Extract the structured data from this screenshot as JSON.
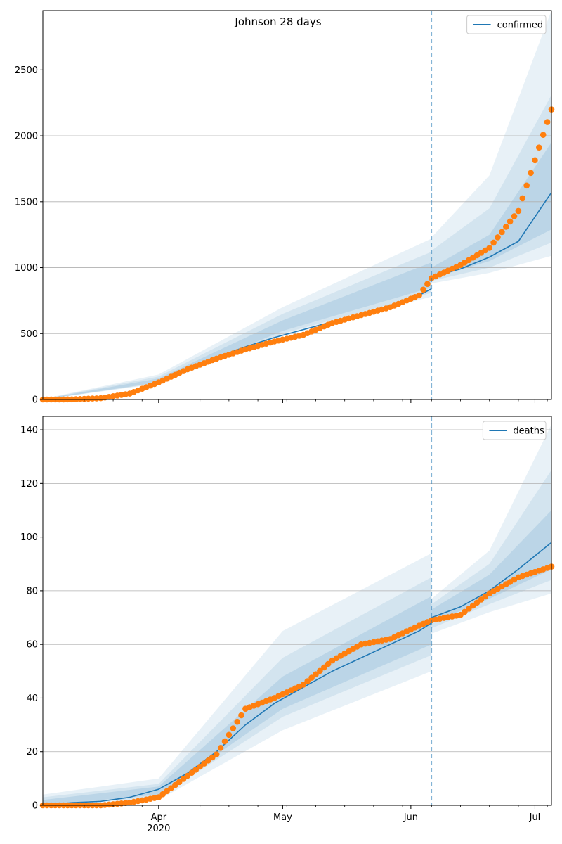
{
  "chart_data": [
    {
      "type": "line",
      "title": "Johnson 28 days",
      "xlabel": "",
      "ylabel": "",
      "x_range": [
        "2020-03-04",
        "2020-07-05"
      ],
      "ylim": [
        0,
        2950
      ],
      "yticks": [
        0,
        500,
        1000,
        1500,
        2000,
        2500
      ],
      "xticks": [
        {
          "date": "2020-04-01",
          "label": "Apr",
          "sublabel": "2020"
        },
        {
          "date": "2020-05-01",
          "label": "May",
          "sublabel": ""
        },
        {
          "date": "2020-06-01",
          "label": "Jun",
          "sublabel": ""
        },
        {
          "date": "2020-07-01",
          "label": "Jul",
          "sublabel": ""
        }
      ],
      "grid": "y",
      "legend_position": "top-right",
      "forecast_start": "2020-06-06",
      "colors": {
        "model": "#1f77b4",
        "observed": "#ff7f0e",
        "band": "#1f77b4"
      },
      "series": [
        {
          "name": "confirmed",
          "kind": "model-line",
          "points": [
            [
              "2020-03-04",
              0
            ],
            [
              "2020-03-11",
              2
            ],
            [
              "2020-03-18",
              12
            ],
            [
              "2020-03-25",
              50
            ],
            [
              "2020-04-01",
              140
            ],
            [
              "2020-04-08",
              230
            ],
            [
              "2020-04-15",
              320
            ],
            [
              "2020-04-22",
              400
            ],
            [
              "2020-04-29",
              470
            ],
            [
              "2020-05-06",
              530
            ],
            [
              "2020-05-13",
              590
            ],
            [
              "2020-05-20",
              650
            ],
            [
              "2020-05-27",
              715
            ],
            [
              "2020-06-03",
              790
            ],
            [
              "2020-06-06",
              840
            ],
            [
              "2020-06-06",
              930
            ],
            [
              "2020-06-13",
              990
            ],
            [
              "2020-06-20",
              1080
            ],
            [
              "2020-06-27",
              1200
            ],
            [
              "2020-07-05",
              1570
            ]
          ]
        },
        {
          "kind": "observed-points",
          "points": [
            [
              "2020-03-04",
              0
            ],
            [
              "2020-03-11",
              1
            ],
            [
              "2020-03-18",
              10
            ],
            [
              "2020-03-25",
              45
            ],
            [
              "2020-04-01",
              130
            ],
            [
              "2020-04-08",
              230
            ],
            [
              "2020-04-15",
              310
            ],
            [
              "2020-04-22",
              380
            ],
            [
              "2020-04-29",
              440
            ],
            [
              "2020-05-06",
              490
            ],
            [
              "2020-05-13",
              580
            ],
            [
              "2020-05-20",
              640
            ],
            [
              "2020-05-27",
              700
            ],
            [
              "2020-06-03",
              790
            ],
            [
              "2020-06-06",
              920
            ],
            [
              "2020-06-13",
              1020
            ],
            [
              "2020-06-20",
              1150
            ],
            [
              "2020-06-27",
              1430
            ],
            [
              "2020-07-05",
              2200
            ]
          ]
        },
        {
          "kind": "uncertainty-bands",
          "bands": [
            {
              "level": 1,
              "lower": [
                [
                  "2020-03-04",
                  0
                ],
                [
                  "2020-04-01",
                  120
                ],
                [
                  "2020-05-01",
                  480
                ],
                [
                  "2020-06-06",
                  780
                ],
                [
                  "2020-06-06",
                  880
                ],
                [
                  "2020-06-20",
                  960
                ],
                [
                  "2020-07-05",
                  1090
                ]
              ],
              "upper": [
                [
                  "2020-03-04",
                  5
                ],
                [
                  "2020-04-01",
                  190
                ],
                [
                  "2020-05-01",
                  700
                ],
                [
                  "2020-06-06",
                  1220
                ],
                [
                  "2020-06-06",
                  1230
                ],
                [
                  "2020-06-20",
                  1700
                ],
                [
                  "2020-07-05",
                  2950
                ]
              ]
            },
            {
              "level": 2,
              "lower": [
                [
                  "2020-03-04",
                  0
                ],
                [
                  "2020-04-01",
                  125
                ],
                [
                  "2020-05-01",
                  500
                ],
                [
                  "2020-06-06",
                  810
                ],
                [
                  "2020-06-06",
                  900
                ],
                [
                  "2020-06-20",
                  1000
                ],
                [
                  "2020-07-05",
                  1190
                ]
              ],
              "upper": [
                [
                  "2020-03-04",
                  3
                ],
                [
                  "2020-04-01",
                  175
                ],
                [
                  "2020-05-01",
                  650
                ],
                [
                  "2020-06-06",
                  1120
                ],
                [
                  "2020-06-06",
                  1130
                ],
                [
                  "2020-06-20",
                  1450
                ],
                [
                  "2020-07-05",
                  2310
                ]
              ]
            },
            {
              "level": 3,
              "lower": [
                [
                  "2020-03-04",
                  0
                ],
                [
                  "2020-04-01",
                  130
                ],
                [
                  "2020-05-01",
                  520
                ],
                [
                  "2020-06-06",
                  850
                ],
                [
                  "2020-06-06",
                  920
                ],
                [
                  "2020-06-20",
                  1050
                ],
                [
                  "2020-07-05",
                  1290
                ]
              ],
              "upper": [
                [
                  "2020-03-04",
                  2
                ],
                [
                  "2020-04-01",
                  160
                ],
                [
                  "2020-05-01",
                  600
                ],
                [
                  "2020-06-06",
                  1040
                ],
                [
                  "2020-06-06",
                  1000
                ],
                [
                  "2020-06-20",
                  1250
                ],
                [
                  "2020-07-05",
                  1950
                ]
              ]
            }
          ]
        }
      ]
    },
    {
      "type": "line",
      "title": "",
      "xlabel": "",
      "ylabel": "",
      "x_range": [
        "2020-03-04",
        "2020-07-05"
      ],
      "ylim": [
        0,
        145
      ],
      "yticks": [
        0,
        20,
        40,
        60,
        80,
        100,
        120,
        140
      ],
      "xticks": [
        {
          "date": "2020-04-01",
          "label": "Apr",
          "sublabel": "2020"
        },
        {
          "date": "2020-05-01",
          "label": "May",
          "sublabel": ""
        },
        {
          "date": "2020-06-01",
          "label": "Jun",
          "sublabel": ""
        },
        {
          "date": "2020-07-01",
          "label": "Jul",
          "sublabel": ""
        }
      ],
      "grid": "y",
      "legend_position": "top-right",
      "forecast_start": "2020-06-06",
      "colors": {
        "model": "#1f77b4",
        "observed": "#ff7f0e",
        "band": "#1f77b4"
      },
      "series": [
        {
          "name": "deaths",
          "kind": "model-line",
          "points": [
            [
              "2020-03-04",
              0
            ],
            [
              "2020-03-11",
              1
            ],
            [
              "2020-03-18",
              1.5
            ],
            [
              "2020-03-25",
              3
            ],
            [
              "2020-04-01",
              6
            ],
            [
              "2020-04-08",
              12
            ],
            [
              "2020-04-15",
              20
            ],
            [
              "2020-04-22",
              30
            ],
            [
              "2020-04-29",
              38
            ],
            [
              "2020-05-06",
              44
            ],
            [
              "2020-05-13",
              50
            ],
            [
              "2020-05-20",
              55
            ],
            [
              "2020-05-27",
              60
            ],
            [
              "2020-06-03",
              65
            ],
            [
              "2020-06-06",
              68
            ],
            [
              "2020-06-06",
              70
            ],
            [
              "2020-06-13",
              74
            ],
            [
              "2020-06-20",
              80
            ],
            [
              "2020-06-27",
              88
            ],
            [
              "2020-07-05",
              98
            ]
          ]
        },
        {
          "kind": "observed-points",
          "points": [
            [
              "2020-03-04",
              0
            ],
            [
              "2020-03-11",
              0
            ],
            [
              "2020-03-18",
              0
            ],
            [
              "2020-03-25",
              1
            ],
            [
              "2020-04-01",
              3
            ],
            [
              "2020-04-08",
              11
            ],
            [
              "2020-04-15",
              19
            ],
            [
              "2020-04-22",
              36
            ],
            [
              "2020-04-29",
              40
            ],
            [
              "2020-05-06",
              45
            ],
            [
              "2020-05-13",
              54
            ],
            [
              "2020-05-20",
              60
            ],
            [
              "2020-05-27",
              62
            ],
            [
              "2020-06-03",
              67
            ],
            [
              "2020-06-06",
              69
            ],
            [
              "2020-06-13",
              71
            ],
            [
              "2020-06-20",
              79
            ],
            [
              "2020-06-27",
              85
            ],
            [
              "2020-07-05",
              89
            ]
          ]
        },
        {
          "kind": "uncertainty-bands",
          "bands": [
            {
              "level": 1,
              "lower": [
                [
                  "2020-03-04",
                  0
                ],
                [
                  "2020-04-01",
                  2
                ],
                [
                  "2020-05-01",
                  28
                ],
                [
                  "2020-06-06",
                  50
                ],
                [
                  "2020-06-06",
                  64
                ],
                [
                  "2020-06-20",
                  72
                ],
                [
                  "2020-07-05",
                  79
                ]
              ],
              "upper": [
                [
                  "2020-03-04",
                  4
                ],
                [
                  "2020-04-01",
                  10
                ],
                [
                  "2020-05-01",
                  65
                ],
                [
                  "2020-06-06",
                  94
                ],
                [
                  "2020-06-06",
                  77
                ],
                [
                  "2020-06-20",
                  95
                ],
                [
                  "2020-07-05",
                  142
                ]
              ]
            },
            {
              "level": 2,
              "lower": [
                [
                  "2020-03-04",
                  0
                ],
                [
                  "2020-04-01",
                  3
                ],
                [
                  "2020-05-01",
                  33
                ],
                [
                  "2020-06-06",
                  56
                ],
                [
                  "2020-06-06",
                  66
                ],
                [
                  "2020-06-20",
                  75
                ],
                [
                  "2020-07-05",
                  84
                ]
              ],
              "upper": [
                [
                  "2020-03-04",
                  3
                ],
                [
                  "2020-04-01",
                  8
                ],
                [
                  "2020-05-01",
                  55
                ],
                [
                  "2020-06-06",
                  85
                ],
                [
                  "2020-06-06",
                  75
                ],
                [
                  "2020-06-20",
                  90
                ],
                [
                  "2020-07-05",
                  125
                ]
              ]
            },
            {
              "level": 3,
              "lower": [
                [
                  "2020-03-04",
                  0
                ],
                [
                  "2020-04-01",
                  4
                ],
                [
                  "2020-05-01",
                  36
                ],
                [
                  "2020-06-06",
                  60
                ],
                [
                  "2020-06-06",
                  68
                ],
                [
                  "2020-06-20",
                  77
                ],
                [
                  "2020-07-05",
                  88
                ]
              ],
              "upper": [
                [
                  "2020-03-04",
                  2
                ],
                [
                  "2020-04-01",
                  7
                ],
                [
                  "2020-05-01",
                  48
                ],
                [
                  "2020-06-06",
                  78
                ],
                [
                  "2020-06-06",
                  73
                ],
                [
                  "2020-06-20",
                  86
                ],
                [
                  "2020-07-05",
                  110
                ]
              ]
            }
          ]
        }
      ]
    }
  ]
}
